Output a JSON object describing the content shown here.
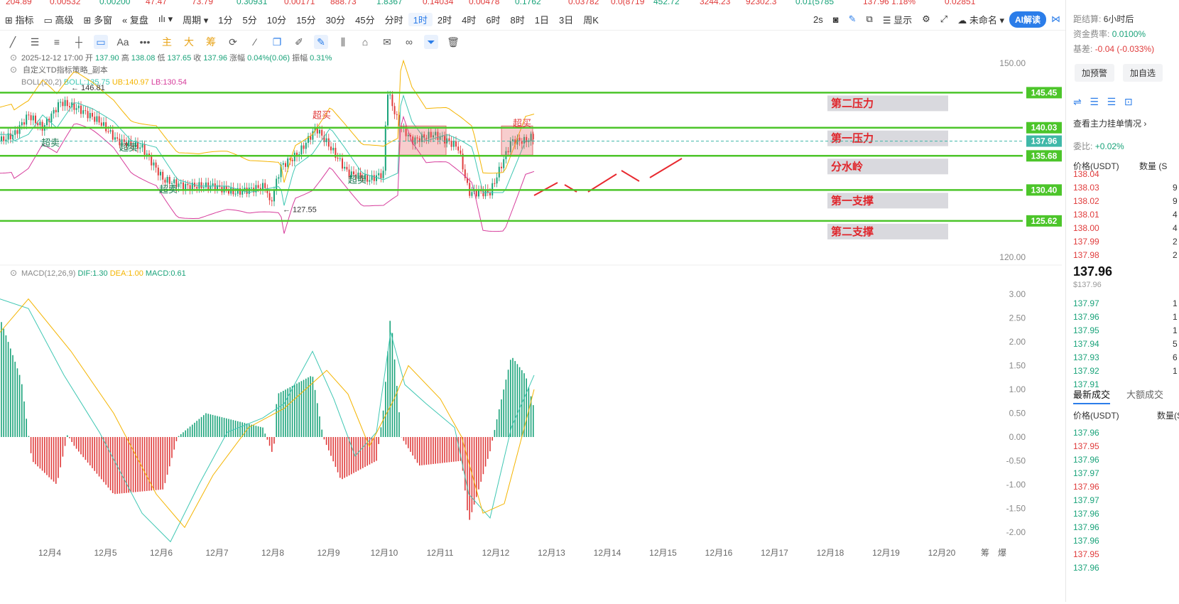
{
  "ticker": [
    "204.89",
    "0.00532",
    "0.00200",
    "47.47",
    "73.79",
    "0.30931",
    "0.00171",
    "888.73",
    "1.8367",
    "0.14034",
    "0.00478",
    "0.1762",
    "0.03782",
    "0.0(8719",
    "452.72",
    "3244.23",
    "92302.3",
    "0.01(5785",
    "137.96 1.18%",
    "0.02851"
  ],
  "toolbar": {
    "items": [
      "指标",
      "高级",
      "多窗",
      "复盘",
      "周期",
      "1分",
      "5分",
      "10分",
      "15分",
      "30分",
      "45分",
      "分时",
      "1时",
      "2时",
      "4时",
      "6时",
      "8时",
      "1日",
      "3日",
      "周K"
    ],
    "active": "1时",
    "right": {
      "interval": "2s",
      "display": "显示",
      "workspace": "未命名",
      "ai": "AI解读"
    }
  },
  "info_line": {
    "date": "2025-12-12 17:00",
    "open_l": "开",
    "open": "137.90",
    "high_l": "高",
    "high": "138.08",
    "low_l": "低",
    "low": "137.65",
    "close_l": "收",
    "close": "137.96",
    "chg_l": "涨幅",
    "chg": "0.04%(0.06)",
    "amp_l": "振幅",
    "amp": "0.31%"
  },
  "strategy_label": "自定义TD指标策略_副本",
  "boll": {
    "name": "BOLL(20,2)",
    "mb": "BOLL:135.75",
    "ub": "UB:140.97",
    "lb": "LB:130.54"
  },
  "macd": {
    "name": "MACD(12,26,9)",
    "dif": "DIF:1.30",
    "dea": "DEA:1.00",
    "macd": "MACD:0.61"
  },
  "price_axis": [
    "150.00",
    "120.00"
  ],
  "macd_axis": [
    "3.00",
    "2.50",
    "2.00",
    "1.50",
    "1.00",
    "0.50",
    "0.00",
    "-0.50",
    "-1.00",
    "-1.50",
    "-2.00"
  ],
  "levels": [
    {
      "price": "145.45",
      "label": "第二压力"
    },
    {
      "price": "140.03",
      "label": "第一压力"
    },
    {
      "price": "137.96",
      "label": ""
    },
    {
      "price": "135.68",
      "label": "分水岭"
    },
    {
      "price": "130.40",
      "label": "第一支撑"
    },
    {
      "price": "125.62",
      "label": "第二支撑"
    }
  ],
  "annotations": {
    "overbought": "超买",
    "oversold": "超卖",
    "high_mark": "146.81",
    "low_mark": "127.55"
  },
  "x_dates": [
    "12月4",
    "12月5",
    "12月6",
    "12月7",
    "12月8",
    "12月9",
    "12月10",
    "12月11",
    "12月12",
    "12月13",
    "12月14",
    "12月15",
    "12月16",
    "12月17",
    "12月18",
    "12月19",
    "12月20"
  ],
  "x_end": [
    "筹",
    "爆"
  ],
  "right_panel": {
    "settle_l": "距结算:",
    "settle": "6小时后",
    "funding_l": "资金费率:",
    "funding": "0.0100%",
    "basis_l": "基差:",
    "basis": "-0.04 (-0.033%)",
    "btn1": "加预警",
    "btn2": "加自选",
    "view_orders": "查看主力挂单情况",
    "ratio_l": "委比:",
    "ratio": "+0.02%",
    "col_price": "价格(USDT)",
    "col_qty": "数量 (S",
    "asks": [
      {
        "p": "138.04",
        "q": ""
      },
      {
        "p": "138.03",
        "q": "9"
      },
      {
        "p": "138.02",
        "q": "9"
      },
      {
        "p": "138.01",
        "q": "4"
      },
      {
        "p": "138.00",
        "q": "4"
      },
      {
        "p": "137.99",
        "q": "2"
      },
      {
        "p": "137.98",
        "q": "2"
      }
    ],
    "last": "137.96",
    "last_usd": "$137.96",
    "bids": [
      {
        "p": "137.97",
        "q": "1"
      },
      {
        "p": "137.96",
        "q": "1"
      },
      {
        "p": "137.95",
        "q": "1"
      },
      {
        "p": "137.94",
        "q": "5"
      },
      {
        "p": "137.93",
        "q": "6"
      },
      {
        "p": "137.92",
        "q": "1"
      },
      {
        "p": "137.91",
        "q": ""
      }
    ],
    "tab1": "最新成交",
    "tab2": "大额成交",
    "trade_cols": [
      "价格(USDT)",
      "数量(S"
    ],
    "trades": [
      {
        "p": "137.96",
        "s": "bid"
      },
      {
        "p": "137.95",
        "s": "ask"
      },
      {
        "p": "137.96",
        "s": "bid"
      },
      {
        "p": "137.97",
        "s": "bid"
      },
      {
        "p": "137.96",
        "s": "ask"
      },
      {
        "p": "137.97",
        "s": "bid"
      },
      {
        "p": "137.96",
        "s": "bid"
      },
      {
        "p": "137.96",
        "s": "bid"
      },
      {
        "p": "137.96",
        "s": "bid"
      },
      {
        "p": "137.95",
        "s": "ask"
      },
      {
        "p": "137.96",
        "s": "bid"
      }
    ]
  },
  "colors": {
    "up": "#1aa37a",
    "down": "#e03c3c",
    "level": "#4cc52a",
    "label_bg": "#d9d9de",
    "label_text": "#e0252b",
    "boll_ub": "#f4b400",
    "boll_lb": "#d63c9b",
    "boll_mb": "#3fc7b3",
    "accent": "#2b7de9"
  }
}
